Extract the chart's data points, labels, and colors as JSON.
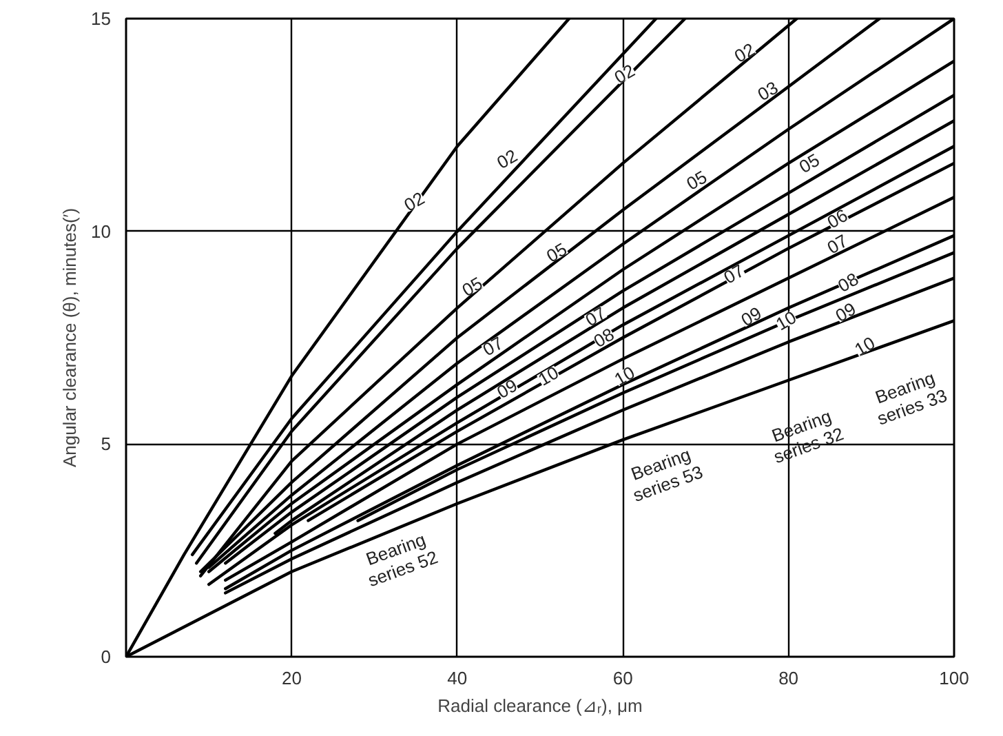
{
  "chart_data": {
    "type": "line",
    "xlabel": "Radial clearance (⊿ᵣ), μm",
    "ylabel": "Angular clearance (θ), minutes(′)",
    "xlim": [
      0,
      100
    ],
    "ylim": [
      0,
      15
    ],
    "xticks": [
      {
        "value": 0,
        "label": null
      },
      20,
      40,
      60,
      80,
      100
    ],
    "yticks": [
      0,
      5,
      10,
      15
    ],
    "grid": true,
    "line_style": "solid",
    "marker": "none",
    "series": [
      {
        "color": "#000000",
        "x": [
          0,
          7,
          20,
          40,
          53.5
        ],
        "values": [
          0,
          2.4,
          6.6,
          12.0,
          15
        ]
      },
      {
        "color": "#000000",
        "x": [
          8,
          20,
          40,
          64
        ],
        "values": [
          2.4,
          5.6,
          10.0,
          15
        ]
      },
      {
        "color": "#000000",
        "x": [
          8.5,
          20,
          40,
          67.5
        ],
        "values": [
          2.2,
          5.3,
          9.6,
          15
        ]
      },
      {
        "color": "#000000",
        "x": [
          9,
          20,
          40,
          60,
          81
        ],
        "values": [
          1.9,
          4.6,
          8.2,
          11.6,
          15
        ]
      },
      {
        "color": "#000000",
        "x": [
          9,
          20,
          40,
          60,
          80,
          91
        ],
        "values": [
          2.0,
          4.1,
          7.5,
          10.5,
          13.4,
          15
        ]
      },
      {
        "color": "#000000",
        "x": [
          10,
          20,
          40,
          60,
          80,
          100
        ],
        "values": [
          2.1,
          3.8,
          6.9,
          9.7,
          12.4,
          15
        ]
      },
      {
        "color": "#000000",
        "x": [
          10,
          20,
          40,
          60,
          80,
          100
        ],
        "values": [
          2.0,
          3.6,
          6.4,
          9.1,
          11.6,
          14.0
        ]
      },
      {
        "color": "#000000",
        "x": [
          12,
          20,
          40,
          60,
          80,
          100
        ],
        "values": [
          2.2,
          3.4,
          6.1,
          8.6,
          10.9,
          13.2
        ]
      },
      {
        "color": "#000000",
        "x": [
          18,
          20,
          40,
          60,
          80,
          100
        ],
        "values": [
          2.9,
          3.2,
          5.8,
          8.2,
          10.4,
          12.6
        ]
      },
      {
        "color": "#000000",
        "x": [
          10,
          20,
          40,
          60,
          80,
          100
        ],
        "values": [
          1.7,
          3.1,
          5.5,
          7.8,
          9.9,
          12.0
        ]
      },
      {
        "color": "#000000",
        "x": [
          22,
          40,
          60,
          80,
          100
        ],
        "values": [
          3.2,
          5.3,
          7.5,
          9.6,
          11.6
        ]
      },
      {
        "color": "#000000",
        "x": [
          12,
          20,
          40,
          60,
          80,
          100
        ],
        "values": [
          1.8,
          2.7,
          5.0,
          7.0,
          8.9,
          10.8
        ]
      },
      {
        "color": "#000000",
        "x": [
          12,
          20,
          40,
          60,
          80,
          100
        ],
        "values": [
          1.6,
          2.5,
          4.5,
          6.4,
          8.2,
          9.9
        ]
      },
      {
        "color": "#000000",
        "x": [
          28,
          40,
          60,
          80,
          100
        ],
        "values": [
          3.2,
          4.4,
          6.2,
          7.9,
          9.5
        ]
      },
      {
        "color": "#000000",
        "x": [
          12,
          20,
          40,
          60,
          80,
          100
        ],
        "values": [
          1.5,
          2.3,
          4.1,
          5.8,
          7.4,
          8.9
        ]
      },
      {
        "color": "#000000",
        "x": [
          0,
          20,
          40,
          60,
          80,
          100
        ],
        "values": [
          0,
          2.0,
          3.6,
          5.1,
          6.5,
          7.9
        ]
      }
    ],
    "annotations": [
      {
        "text": "02",
        "x": 34.8,
        "y": 10.7
      },
      {
        "text": "02",
        "x": 46,
        "y": 11.7
      },
      {
        "text": "05",
        "x": 41.8,
        "y": 8.7
      },
      {
        "text": "05",
        "x": 52,
        "y": 9.5
      },
      {
        "text": "07",
        "x": 44.3,
        "y": 7.3
      },
      {
        "text": "09",
        "x": 46,
        "y": 6.3
      },
      {
        "text": "10",
        "x": 51,
        "y": 6.6
      },
      {
        "text": "02",
        "x": 60.2,
        "y": 13.7
      },
      {
        "text": "02",
        "x": 74.7,
        "y": 14.2
      },
      {
        "text": "03",
        "x": 77.5,
        "y": 13.3
      },
      {
        "text": "05",
        "x": 68.9,
        "y": 11.2
      },
      {
        "text": "05",
        "x": 82.5,
        "y": 11.6
      },
      {
        "text": "06",
        "x": 85.9,
        "y": 10.3
      },
      {
        "text": "07",
        "x": 85.9,
        "y": 9.7
      },
      {
        "text": "07",
        "x": 73.4,
        "y": 9.0
      },
      {
        "text": "08",
        "x": 87.2,
        "y": 8.8
      },
      {
        "text": "09",
        "x": 86.9,
        "y": 8.1
      },
      {
        "text": "09",
        "x": 75.5,
        "y": 8.0
      },
      {
        "text": "10",
        "x": 79.7,
        "y": 7.9
      },
      {
        "text": "10",
        "x": 89.2,
        "y": 7.3
      },
      {
        "text": "07",
        "x": 56.7,
        "y": 8.0
      },
      {
        "text": "08",
        "x": 57.7,
        "y": 7.5
      },
      {
        "text": "10",
        "x": 60.2,
        "y": 6.6
      },
      "Bearing\nseries 52",
      "Bearing\nseries 53",
      "Bearing\nseries 32",
      "Bearing\nseries 33"
    ]
  }
}
